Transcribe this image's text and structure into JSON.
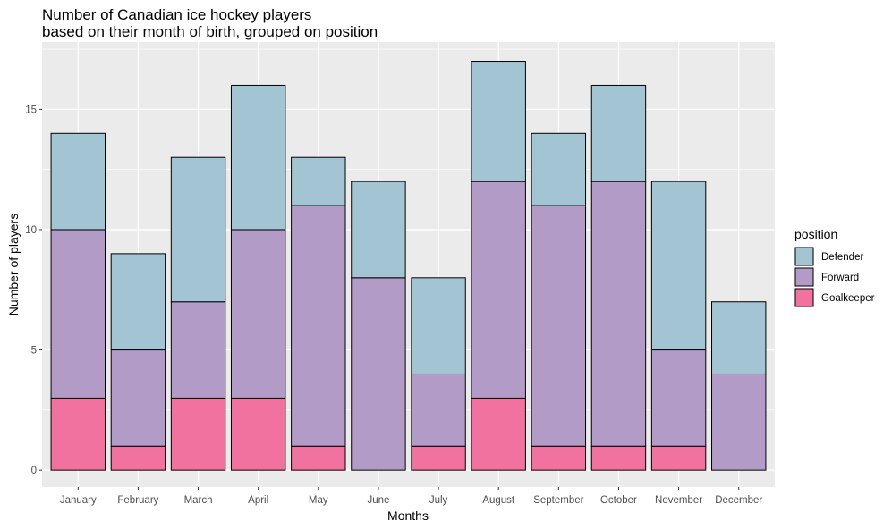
{
  "chart_data": {
    "type": "bar",
    "stacked": true,
    "title_line1": "Number of Canadian ice hockey players",
    "title_line2": "based on their month of birth, grouped on position",
    "xlabel": "Months",
    "ylabel": "Number of players",
    "categories": [
      "January",
      "February",
      "March",
      "April",
      "May",
      "June",
      "July",
      "August",
      "September",
      "October",
      "November",
      "December"
    ],
    "series": [
      {
        "name": "Goalkeeper",
        "color": "#F1729F",
        "values": [
          3,
          1,
          3,
          3,
          1,
          0,
          1,
          3,
          1,
          1,
          1,
          0
        ]
      },
      {
        "name": "Forward",
        "color": "#B39BC8",
        "values": [
          7,
          4,
          4,
          7,
          10,
          8,
          3,
          9,
          10,
          11,
          4,
          4
        ]
      },
      {
        "name": "Defender",
        "color": "#A3C4D3",
        "values": [
          4,
          4,
          6,
          6,
          2,
          4,
          4,
          5,
          3,
          4,
          7,
          3
        ]
      }
    ],
    "ylim": [
      -0.7,
      17.8
    ],
    "yticks": [
      0,
      5,
      10,
      15
    ],
    "grid": true,
    "panel_background": "#EBEBEB",
    "legend": {
      "title": "position",
      "placement": "right",
      "entries": [
        "Defender",
        "Forward",
        "Goalkeeper"
      ]
    }
  }
}
